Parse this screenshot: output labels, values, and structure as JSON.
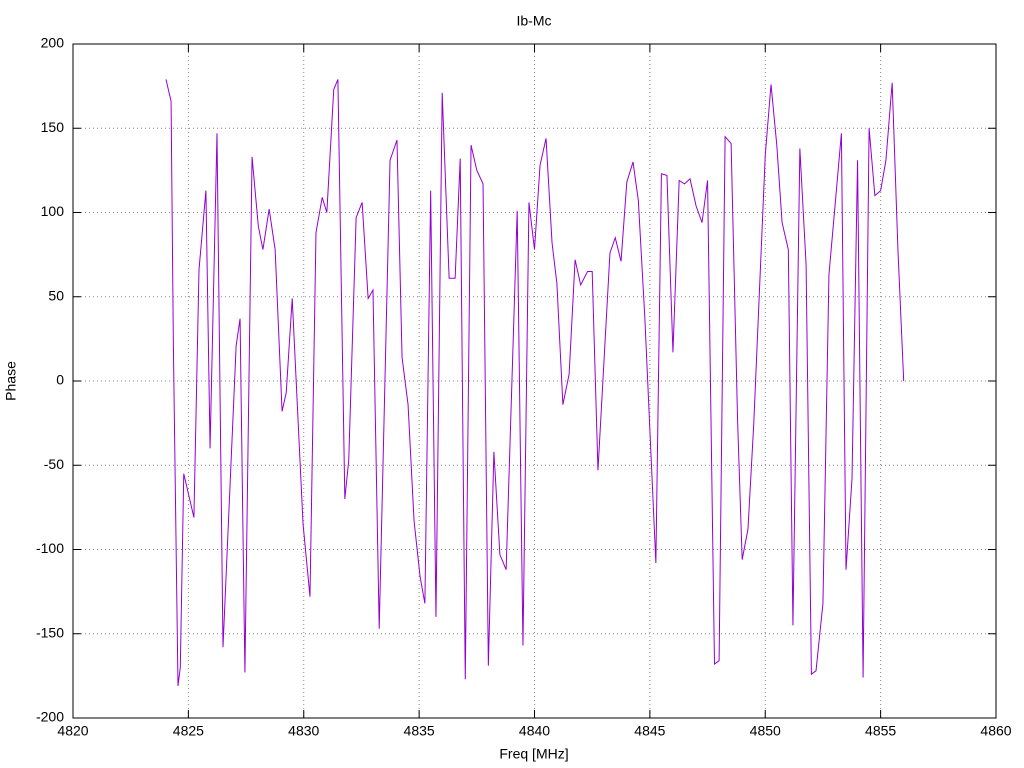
{
  "chart_data": {
    "type": "line",
    "title": "Ib-Mc",
    "x_label": "Freq [MHz]",
    "y_label": "Phase",
    "xlim": [
      4820,
      4860
    ],
    "xticks": [
      4820,
      4825,
      4830,
      4835,
      4840,
      4845,
      4850,
      4855,
      4860
    ],
    "ylim": [
      -200,
      200
    ],
    "yticks": [
      -200,
      -150,
      -100,
      -50,
      0,
      50,
      100,
      150,
      200
    ],
    "grid": true,
    "x": [
      4824.03,
      4824.25,
      4824.35,
      4824.55,
      4824.65,
      4824.8,
      4825.24,
      4825.46,
      4825.76,
      4825.94,
      4826.24,
      4826.5,
      4827.07,
      4827.24,
      4827.45,
      4827.76,
      4828.03,
      4828.23,
      4828.5,
      4828.76,
      4829.06,
      4829.24,
      4829.5,
      4829.97,
      4830.27,
      4830.53,
      4830.8,
      4831.0,
      4831.3,
      4831.48,
      4831.78,
      4831.95,
      4832.27,
      4832.53,
      4832.79,
      4833.0,
      4833.27,
      4833.74,
      4834.04,
      4834.26,
      4834.52,
      4834.78,
      4835.04,
      4835.25,
      4835.5,
      4835.73,
      4836.0,
      4836.3,
      4836.56,
      4836.78,
      4837.0,
      4837.25,
      4837.5,
      4837.77,
      4838.0,
      4838.24,
      4838.5,
      4838.77,
      4839.25,
      4839.5,
      4839.76,
      4840.0,
      4840.24,
      4840.5,
      4840.76,
      4840.97,
      4841.23,
      4841.5,
      4841.76,
      4842.0,
      4842.3,
      4842.5,
      4842.75,
      4843.27,
      4843.5,
      4843.75,
      4844.0,
      4844.27,
      4844.5,
      4844.78,
      4845.0,
      4845.26,
      4845.5,
      4845.74,
      4846.0,
      4846.27,
      4846.5,
      4846.74,
      4847.0,
      4847.26,
      4847.5,
      4847.8,
      4848.0,
      4848.26,
      4848.52,
      4848.8,
      4849.0,
      4849.25,
      4849.5,
      4850.0,
      4850.25,
      4850.5,
      4850.73,
      4851.0,
      4851.2,
      4851.5,
      4851.77,
      4852.0,
      4852.2,
      4852.5,
      4852.76,
      4853.3,
      4853.5,
      4853.76,
      4854.0,
      4854.24,
      4854.5,
      4854.75,
      4855.0,
      4855.23,
      4855.5,
      4855.75,
      4856.0
    ],
    "series": [
      {
        "color": "#9400d3",
        "values": [
          179,
          166,
          21,
          -181,
          -170,
          -55,
          -81,
          66,
          113,
          -40,
          147,
          -158,
          21,
          37,
          -173,
          133,
          92,
          78,
          102,
          78,
          -18,
          -7,
          49,
          -85,
          -128,
          88,
          109,
          100,
          173,
          179,
          -70,
          -47,
          97,
          106,
          49,
          54,
          -147,
          131,
          143,
          14,
          -14,
          -83,
          -116,
          -132,
          113,
          -140,
          171,
          61,
          61,
          132,
          -177,
          140,
          125,
          117,
          -169,
          -42,
          -103,
          -112,
          101,
          -157,
          106,
          78,
          128,
          144,
          82,
          58,
          -14,
          4,
          72,
          57,
          65,
          65,
          -53,
          76,
          85,
          71,
          118,
          130,
          107,
          38,
          -29,
          -108,
          123,
          122,
          17,
          119,
          117,
          120,
          104,
          94,
          119,
          -168,
          -166,
          145,
          141,
          -23,
          -106,
          -88,
          -26,
          134,
          176,
          140,
          94,
          78,
          -145,
          138,
          69,
          -174,
          -172,
          -132,
          63,
          147,
          -112,
          -58,
          131,
          -176,
          150,
          110,
          113,
          131,
          177,
          78,
          0
        ]
      }
    ]
  }
}
